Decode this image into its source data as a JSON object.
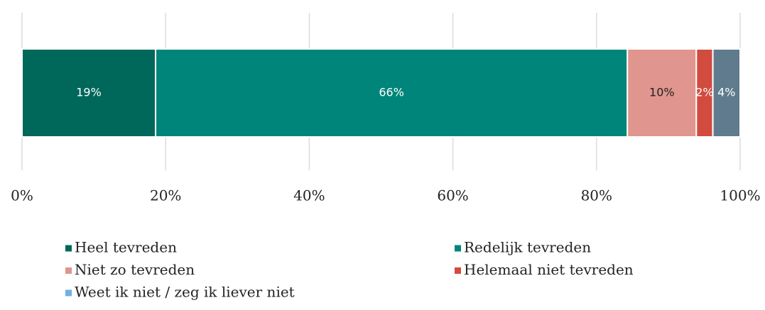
{
  "chart_data": {
    "type": "stacked_bar_horizontal",
    "series": [
      {
        "name": "Heel tevreden",
        "color": "#00675b",
        "label_color": "#ffffff",
        "values": [
          18.6
        ],
        "value_labels": [
          "19%"
        ]
      },
      {
        "name": "Redelijk tevreden",
        "color": "#00857a",
        "label_color": "#ffffff",
        "values": [
          65.7
        ],
        "value_labels": [
          "66%"
        ]
      },
      {
        "name": "Niet zo tevreden",
        "color": "#e0958e",
        "label_color": "#222222",
        "values": [
          9.6
        ],
        "value_labels": [
          "10%"
        ]
      },
      {
        "name": "Helemaal niet tevreden",
        "color": "#d14b3f",
        "label_color": "#ffffff",
        "values": [
          2.3
        ],
        "value_labels": [
          "2%"
        ]
      },
      {
        "name": "Weet ik niet / zeg ik liever niet",
        "color": "#5f7b8d",
        "legend_color": "#6fb0e0",
        "label_color": "#ffffff",
        "values": [
          3.8
        ],
        "value_labels": [
          "4%"
        ]
      }
    ],
    "xlim": [
      0,
      100
    ],
    "xticks": [
      {
        "value": 0,
        "label": "0%"
      },
      {
        "value": 20,
        "label": "20%"
      },
      {
        "value": 40,
        "label": "40%"
      },
      {
        "value": 60,
        "label": "60%"
      },
      {
        "value": 80,
        "label": "80%"
      },
      {
        "value": 100,
        "label": "100%"
      }
    ],
    "grid": true
  }
}
